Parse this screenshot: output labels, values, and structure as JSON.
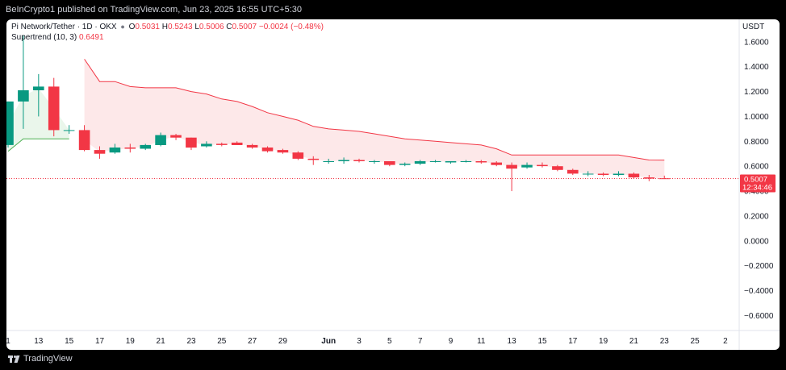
{
  "header": {
    "publisher": "BeInCrypto1 published on TradingView.com, Jun 23, 2025 16:55 UTC+5:30"
  },
  "legend": {
    "symbol": "Pi Network/Tether · 1D · OKX",
    "o_label": "O",
    "o_value": "0.5031",
    "h_label": "H",
    "h_value": "0.5243",
    "l_label": "L",
    "l_value": "0.5006",
    "c_label": "C",
    "c_value": "0.5007",
    "change": "−0.0024 (−0.48%)",
    "indicator_name": "Supertrend (10, 3)",
    "indicator_value": "0.6491"
  },
  "footer": {
    "brand": "TradingView"
  },
  "colors": {
    "up": "#089981",
    "down": "#f23645",
    "st_up": "#4caf50",
    "st_down": "#f23645",
    "st_up_fill": "#e8f5e9",
    "st_down_fill": "#fde6e7"
  },
  "chart_data": {
    "type": "candlestick",
    "ylabel": "USDT",
    "ylim": [
      -0.72,
      1.78
    ],
    "yticks": [
      {
        "v": 1.6,
        "label": "1.6000"
      },
      {
        "v": 1.4,
        "label": "1.4000"
      },
      {
        "v": 1.2,
        "label": "1.2000"
      },
      {
        "v": 1.0,
        "label": "1.0000"
      },
      {
        "v": 0.8,
        "label": "0.8000"
      },
      {
        "v": 0.6,
        "label": "0.6000"
      },
      {
        "v": 0.4,
        "label": "0.4000"
      },
      {
        "v": 0.2,
        "label": "0.2000"
      },
      {
        "v": 0.0,
        "label": "0.0000"
      },
      {
        "v": -0.2,
        "label": "−0.2000"
      },
      {
        "v": -0.4,
        "label": "−0.4000"
      },
      {
        "v": -0.6,
        "label": "−0.6000"
      }
    ],
    "xlim": [
      "May 11",
      "Jun 26"
    ],
    "xticks": [
      {
        "date": "May 11",
        "label": "1"
      },
      {
        "date": "May 13",
        "label": "13"
      },
      {
        "date": "May 15",
        "label": "15"
      },
      {
        "date": "May 17",
        "label": "17"
      },
      {
        "date": "May 19",
        "label": "19"
      },
      {
        "date": "May 21",
        "label": "21"
      },
      {
        "date": "May 23",
        "label": "23"
      },
      {
        "date": "May 25",
        "label": "25"
      },
      {
        "date": "May 27",
        "label": "27"
      },
      {
        "date": "May 29",
        "label": "29"
      },
      {
        "date": "Jun 1",
        "label": "Jun"
      },
      {
        "date": "Jun 3",
        "label": "3"
      },
      {
        "date": "Jun 5",
        "label": "5"
      },
      {
        "date": "Jun 7",
        "label": "7"
      },
      {
        "date": "Jun 9",
        "label": "9"
      },
      {
        "date": "Jun 11",
        "label": "11"
      },
      {
        "date": "Jun 13",
        "label": "13"
      },
      {
        "date": "Jun 15",
        "label": "15"
      },
      {
        "date": "Jun 17",
        "label": "17"
      },
      {
        "date": "Jun 19",
        "label": "19"
      },
      {
        "date": "Jun 21",
        "label": "21"
      },
      {
        "date": "Jun 23",
        "label": "23"
      },
      {
        "date": "Jun 25",
        "label": "25"
      },
      {
        "date": "Jun 27",
        "label": "2"
      }
    ],
    "candles": [
      {
        "date": "May 11",
        "o": 0.77,
        "h": 1.12,
        "l": 0.75,
        "c": 1.12
      },
      {
        "date": "May 12",
        "o": 1.12,
        "h": 1.65,
        "l": 0.9,
        "c": 1.21
      },
      {
        "date": "May 13",
        "o": 1.21,
        "h": 1.34,
        "l": 1.0,
        "c": 1.24
      },
      {
        "date": "May 14",
        "o": 1.24,
        "h": 1.31,
        "l": 0.84,
        "c": 0.89
      },
      {
        "date": "May 15",
        "o": 0.89,
        "h": 0.93,
        "l": 0.86,
        "c": 0.89
      },
      {
        "date": "May 16",
        "o": 0.89,
        "h": 0.93,
        "l": 0.72,
        "c": 0.73
      },
      {
        "date": "May 17",
        "o": 0.73,
        "h": 0.76,
        "l": 0.66,
        "c": 0.7
      },
      {
        "date": "May 18",
        "o": 0.71,
        "h": 0.78,
        "l": 0.7,
        "c": 0.75
      },
      {
        "date": "May 19",
        "o": 0.75,
        "h": 0.78,
        "l": 0.71,
        "c": 0.74
      },
      {
        "date": "May 20",
        "o": 0.74,
        "h": 0.78,
        "l": 0.73,
        "c": 0.77
      },
      {
        "date": "May 21",
        "o": 0.77,
        "h": 0.87,
        "l": 0.76,
        "c": 0.85
      },
      {
        "date": "May 22",
        "o": 0.85,
        "h": 0.86,
        "l": 0.81,
        "c": 0.83
      },
      {
        "date": "May 23",
        "o": 0.83,
        "h": 0.83,
        "l": 0.73,
        "c": 0.75
      },
      {
        "date": "May 24",
        "o": 0.76,
        "h": 0.8,
        "l": 0.75,
        "c": 0.78
      },
      {
        "date": "May 25",
        "o": 0.78,
        "h": 0.79,
        "l": 0.76,
        "c": 0.77
      },
      {
        "date": "May 26",
        "o": 0.79,
        "h": 0.8,
        "l": 0.77,
        "c": 0.77
      },
      {
        "date": "May 27",
        "o": 0.77,
        "h": 0.78,
        "l": 0.74,
        "c": 0.75
      },
      {
        "date": "May 28",
        "o": 0.75,
        "h": 0.76,
        "l": 0.71,
        "c": 0.72
      },
      {
        "date": "May 29",
        "o": 0.73,
        "h": 0.74,
        "l": 0.7,
        "c": 0.71
      },
      {
        "date": "May 30",
        "o": 0.71,
        "h": 0.72,
        "l": 0.65,
        "c": 0.66
      },
      {
        "date": "May 31",
        "o": 0.66,
        "h": 0.68,
        "l": 0.61,
        "c": 0.65
      },
      {
        "date": "Jun 1",
        "o": 0.64,
        "h": 0.66,
        "l": 0.62,
        "c": 0.64
      },
      {
        "date": "Jun 2",
        "o": 0.64,
        "h": 0.67,
        "l": 0.62,
        "c": 0.65
      },
      {
        "date": "Jun 3",
        "o": 0.65,
        "h": 0.66,
        "l": 0.63,
        "c": 0.64
      },
      {
        "date": "Jun 4",
        "o": 0.64,
        "h": 0.65,
        "l": 0.62,
        "c": 0.64
      },
      {
        "date": "Jun 5",
        "o": 0.64,
        "h": 0.64,
        "l": 0.6,
        "c": 0.61
      },
      {
        "date": "Jun 6",
        "o": 0.61,
        "h": 0.63,
        "l": 0.6,
        "c": 0.62
      },
      {
        "date": "Jun 7",
        "o": 0.62,
        "h": 0.65,
        "l": 0.61,
        "c": 0.64
      },
      {
        "date": "Jun 8",
        "o": 0.64,
        "h": 0.65,
        "l": 0.63,
        "c": 0.64
      },
      {
        "date": "Jun 9",
        "o": 0.63,
        "h": 0.64,
        "l": 0.62,
        "c": 0.64
      },
      {
        "date": "Jun 10",
        "o": 0.64,
        "h": 0.65,
        "l": 0.63,
        "c": 0.64
      },
      {
        "date": "Jun 11",
        "o": 0.64,
        "h": 0.65,
        "l": 0.62,
        "c": 0.63
      },
      {
        "date": "Jun 12",
        "o": 0.63,
        "h": 0.64,
        "l": 0.6,
        "c": 0.61
      },
      {
        "date": "Jun 13",
        "o": 0.61,
        "h": 0.63,
        "l": 0.4,
        "c": 0.58
      },
      {
        "date": "Jun 14",
        "o": 0.59,
        "h": 0.63,
        "l": 0.58,
        "c": 0.61
      },
      {
        "date": "Jun 15",
        "o": 0.61,
        "h": 0.63,
        "l": 0.59,
        "c": 0.6
      },
      {
        "date": "Jun 16",
        "o": 0.6,
        "h": 0.61,
        "l": 0.56,
        "c": 0.57
      },
      {
        "date": "Jun 17",
        "o": 0.57,
        "h": 0.58,
        "l": 0.53,
        "c": 0.54
      },
      {
        "date": "Jun 18",
        "o": 0.54,
        "h": 0.56,
        "l": 0.52,
        "c": 0.54
      },
      {
        "date": "Jun 19",
        "o": 0.54,
        "h": 0.55,
        "l": 0.52,
        "c": 0.53
      },
      {
        "date": "Jun 20",
        "o": 0.53,
        "h": 0.56,
        "l": 0.52,
        "c": 0.54
      },
      {
        "date": "Jun 21",
        "o": 0.54,
        "h": 0.55,
        "l": 0.5,
        "c": 0.51
      },
      {
        "date": "Jun 22",
        "o": 0.51,
        "h": 0.53,
        "l": 0.48,
        "c": 0.5
      },
      {
        "date": "Jun 23",
        "o": 0.5031,
        "h": 0.5243,
        "l": 0.5006,
        "c": 0.5007
      }
    ],
    "supertrend": [
      {
        "date": "May 11",
        "v": 0.72,
        "trend": "up"
      },
      {
        "date": "May 12",
        "v": 0.82,
        "trend": "up"
      },
      {
        "date": "May 13",
        "v": 0.82,
        "trend": "up"
      },
      {
        "date": "May 14",
        "v": 0.82,
        "trend": "up"
      },
      {
        "date": "May 15",
        "v": 0.82,
        "trend": "up"
      },
      {
        "date": "May 16",
        "v": 1.46,
        "trend": "down"
      },
      {
        "date": "May 17",
        "v": 1.28,
        "trend": "down"
      },
      {
        "date": "May 18",
        "v": 1.28,
        "trend": "down"
      },
      {
        "date": "May 19",
        "v": 1.24,
        "trend": "down"
      },
      {
        "date": "May 20",
        "v": 1.23,
        "trend": "down"
      },
      {
        "date": "May 21",
        "v": 1.23,
        "trend": "down"
      },
      {
        "date": "May 22",
        "v": 1.23,
        "trend": "down"
      },
      {
        "date": "May 23",
        "v": 1.2,
        "trend": "down"
      },
      {
        "date": "May 24",
        "v": 1.18,
        "trend": "down"
      },
      {
        "date": "May 25",
        "v": 1.14,
        "trend": "down"
      },
      {
        "date": "May 26",
        "v": 1.12,
        "trend": "down"
      },
      {
        "date": "May 27",
        "v": 1.08,
        "trend": "down"
      },
      {
        "date": "May 28",
        "v": 1.03,
        "trend": "down"
      },
      {
        "date": "May 29",
        "v": 1.0,
        "trend": "down"
      },
      {
        "date": "May 30",
        "v": 0.97,
        "trend": "down"
      },
      {
        "date": "May 31",
        "v": 0.92,
        "trend": "down"
      },
      {
        "date": "Jun 1",
        "v": 0.9,
        "trend": "down"
      },
      {
        "date": "Jun 2",
        "v": 0.89,
        "trend": "down"
      },
      {
        "date": "Jun 3",
        "v": 0.88,
        "trend": "down"
      },
      {
        "date": "Jun 4",
        "v": 0.86,
        "trend": "down"
      },
      {
        "date": "Jun 5",
        "v": 0.84,
        "trend": "down"
      },
      {
        "date": "Jun 6",
        "v": 0.82,
        "trend": "down"
      },
      {
        "date": "Jun 7",
        "v": 0.81,
        "trend": "down"
      },
      {
        "date": "Jun 8",
        "v": 0.8,
        "trend": "down"
      },
      {
        "date": "Jun 9",
        "v": 0.79,
        "trend": "down"
      },
      {
        "date": "Jun 10",
        "v": 0.78,
        "trend": "down"
      },
      {
        "date": "Jun 11",
        "v": 0.77,
        "trend": "down"
      },
      {
        "date": "Jun 12",
        "v": 0.74,
        "trend": "down"
      },
      {
        "date": "Jun 13",
        "v": 0.69,
        "trend": "down"
      },
      {
        "date": "Jun 14",
        "v": 0.69,
        "trend": "down"
      },
      {
        "date": "Jun 15",
        "v": 0.69,
        "trend": "down"
      },
      {
        "date": "Jun 16",
        "v": 0.69,
        "trend": "down"
      },
      {
        "date": "Jun 17",
        "v": 0.69,
        "trend": "down"
      },
      {
        "date": "Jun 18",
        "v": 0.69,
        "trend": "down"
      },
      {
        "date": "Jun 19",
        "v": 0.69,
        "trend": "down"
      },
      {
        "date": "Jun 20",
        "v": 0.69,
        "trend": "down"
      },
      {
        "date": "Jun 21",
        "v": 0.67,
        "trend": "down"
      },
      {
        "date": "Jun 22",
        "v": 0.65,
        "trend": "down"
      },
      {
        "date": "Jun 23",
        "v": 0.6491,
        "trend": "down"
      }
    ],
    "last_price": {
      "value": 0.5007,
      "label": "0.5007",
      "countdown": "12:34:46"
    },
    "grid": false,
    "legend_position": "top-left"
  }
}
